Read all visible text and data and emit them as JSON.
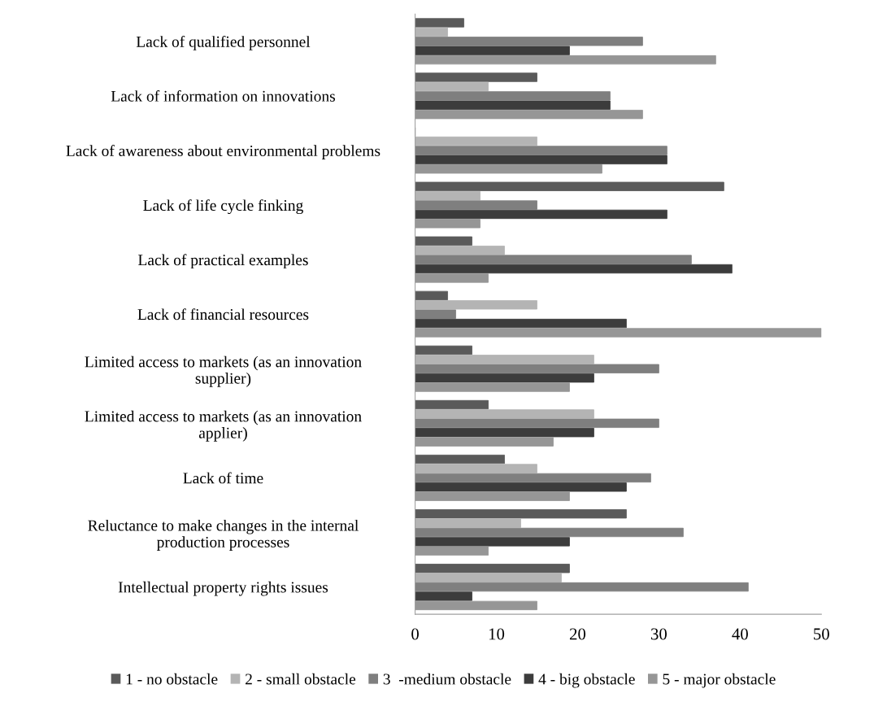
{
  "chart_data": {
    "type": "bar",
    "orientation": "horizontal",
    "categories": [
      "Lack of qualified personnel",
      "Lack of information on innovations",
      "Lack of awareness about environmental problems",
      "Lack of life cycle finking",
      "Lack of practical examples",
      "Lack of financial resources",
      "Limited access to markets (as an innovation\nsupplier)",
      "Limited access to markets (as an innovation\napplier)",
      "Lack of time",
      "Reluctance to make changes in the internal\nproduction processes",
      "Intellectual property rights issues"
    ],
    "series": [
      {
        "name": "1 - no obstacle",
        "color": "#5a5a5a",
        "values": [
          6,
          15,
          0,
          38,
          7,
          4,
          7,
          9,
          11,
          26,
          19
        ]
      },
      {
        "name": "2 - small obstacle",
        "color": "#b4b4b4",
        "values": [
          4,
          9,
          15,
          8,
          11,
          15,
          22,
          22,
          15,
          13,
          18
        ]
      },
      {
        "name": "3  -medium obstacle",
        "color": "#7f7f7f",
        "values": [
          28,
          24,
          31,
          15,
          34,
          5,
          30,
          30,
          29,
          33,
          41
        ]
      },
      {
        "name": "4 - big obstacle",
        "color": "#3c3c3c",
        "values": [
          19,
          24,
          31,
          31,
          39,
          26,
          22,
          22,
          26,
          19,
          7
        ]
      },
      {
        "name": "5 - major obstacle",
        "color": "#969696",
        "values": [
          37,
          28,
          23,
          8,
          9,
          50,
          19,
          17,
          19,
          9,
          15
        ]
      }
    ],
    "xlim": [
      0,
      50
    ],
    "xticks": [
      0,
      10,
      20,
      30,
      40,
      50
    ],
    "grid": false,
    "legend": "bottom"
  }
}
